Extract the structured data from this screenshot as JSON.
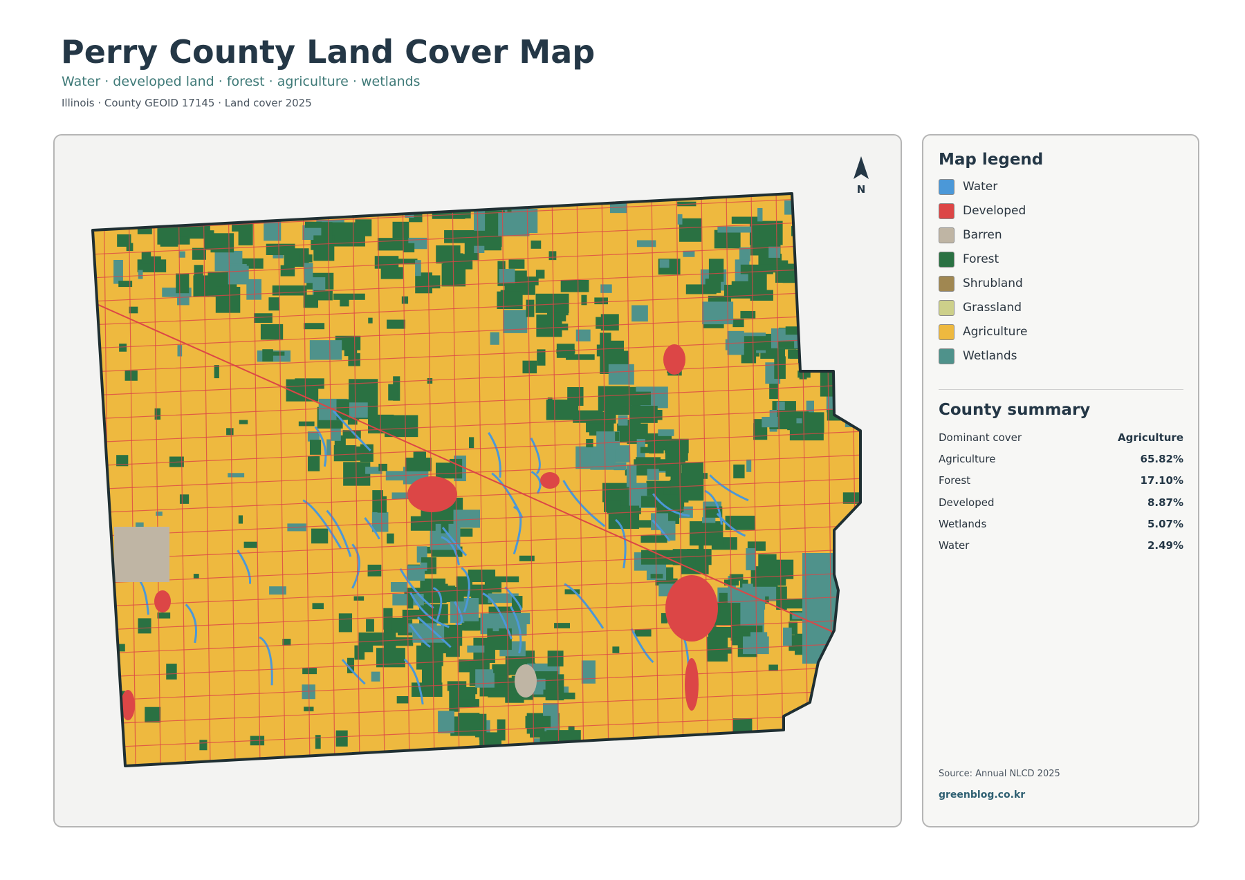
{
  "header": {
    "title": "Perry County Land Cover Map",
    "subtitle": "Water · developed land · forest · agriculture · wetlands",
    "meta": "Illinois · County GEOID 17145 · Land cover 2025"
  },
  "map": {
    "north_label": "N"
  },
  "legend": {
    "title": "Map legend",
    "items": [
      {
        "label": "Water",
        "color": "#4b98d8"
      },
      {
        "label": "Developed",
        "color": "#dc4646"
      },
      {
        "label": "Barren",
        "color": "#bfb5a4"
      },
      {
        "label": "Forest",
        "color": "#2a7142"
      },
      {
        "label": "Shrubland",
        "color": "#a08751"
      },
      {
        "label": "Grassland",
        "color": "#cdd08a"
      },
      {
        "label": "Agriculture",
        "color": "#eeb93f"
      },
      {
        "label": "Wetlands",
        "color": "#4f928b"
      }
    ]
  },
  "summary": {
    "title": "County summary",
    "rows": [
      {
        "label": "Dominant cover",
        "value": "Agriculture"
      },
      {
        "label": "Agriculture",
        "value": "65.82%"
      },
      {
        "label": "Forest",
        "value": "17.10%"
      },
      {
        "label": "Developed",
        "value": "8.87%"
      },
      {
        "label": "Wetlands",
        "value": "5.07%"
      },
      {
        "label": "Water",
        "value": "2.49%"
      }
    ]
  },
  "footer": {
    "source": "Source: Annual NLCD 2025",
    "site": "greenblog.co.kr"
  }
}
